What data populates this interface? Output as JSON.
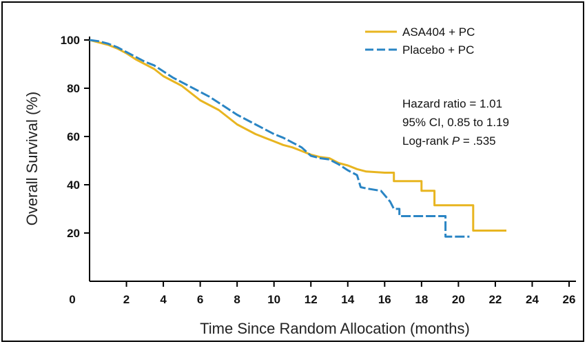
{
  "chart_data": {
    "type": "line",
    "title": "",
    "xlabel": "Time Since Random Allocation (months)",
    "ylabel": "Overall Survival (%)",
    "xlim": [
      0,
      26
    ],
    "ylim": [
      0,
      105
    ],
    "x_ticks": [
      0,
      2,
      4,
      6,
      8,
      10,
      12,
      14,
      16,
      18,
      20,
      22,
      24,
      26
    ],
    "y_ticks": [
      20,
      40,
      60,
      80,
      100
    ],
    "legend_position": "top-right",
    "series": [
      {
        "name": "ASA404 + PC",
        "color": "#e8b520",
        "dash": "solid",
        "points": [
          [
            0,
            100
          ],
          [
            0.5,
            99
          ],
          [
            1,
            98
          ],
          [
            1.5,
            96.5
          ],
          [
            2,
            94.5
          ],
          [
            2.5,
            92
          ],
          [
            3,
            90
          ],
          [
            3.5,
            88
          ],
          [
            4,
            85
          ],
          [
            4.5,
            83
          ],
          [
            5,
            81
          ],
          [
            5.5,
            78
          ],
          [
            6,
            75
          ],
          [
            6.5,
            73
          ],
          [
            7,
            71
          ],
          [
            7.5,
            68
          ],
          [
            8,
            65
          ],
          [
            8.5,
            63
          ],
          [
            9,
            61
          ],
          [
            9.5,
            59.5
          ],
          [
            10,
            58
          ],
          [
            10.5,
            56.5
          ],
          [
            11,
            55.5
          ],
          [
            11.5,
            54
          ],
          [
            12,
            52.5
          ],
          [
            12.5,
            51.5
          ],
          [
            13,
            51
          ],
          [
            13.5,
            49
          ],
          [
            14,
            48
          ],
          [
            14.5,
            46.5
          ],
          [
            15,
            45.5
          ],
          [
            16,
            45
          ],
          [
            16.5,
            45
          ],
          [
            16.5,
            41.5
          ],
          [
            17.5,
            41.5
          ],
          [
            18,
            41.5
          ],
          [
            18,
            37.5
          ],
          [
            18.7,
            37.5
          ],
          [
            18.7,
            31.5
          ],
          [
            20.8,
            31.5
          ],
          [
            20.8,
            21
          ],
          [
            22.6,
            21
          ]
        ]
      },
      {
        "name": "Placebo + PC",
        "color": "#2a85c4",
        "dash": "dashed",
        "points": [
          [
            0,
            100
          ],
          [
            0.5,
            99.5
          ],
          [
            1,
            98.5
          ],
          [
            1.5,
            97
          ],
          [
            2,
            95
          ],
          [
            2.5,
            93
          ],
          [
            3,
            91
          ],
          [
            3.5,
            89.5
          ],
          [
            4,
            87
          ],
          [
            4.5,
            84.5
          ],
          [
            5,
            82.5
          ],
          [
            5.5,
            80.5
          ],
          [
            6,
            78.5
          ],
          [
            6.5,
            76.5
          ],
          [
            7,
            74
          ],
          [
            7.5,
            71.5
          ],
          [
            8,
            69
          ],
          [
            8.5,
            67
          ],
          [
            9,
            65
          ],
          [
            9.5,
            63
          ],
          [
            10,
            61
          ],
          [
            10.5,
            59.5
          ],
          [
            11,
            57.5
          ],
          [
            11.5,
            55.5
          ],
          [
            12,
            52
          ],
          [
            12.5,
            51
          ],
          [
            13,
            50.5
          ],
          [
            13.5,
            48.5
          ],
          [
            14,
            46
          ],
          [
            14.5,
            44
          ],
          [
            14.7,
            39
          ],
          [
            15,
            38.5
          ],
          [
            15.8,
            37.5
          ],
          [
            16.3,
            33
          ],
          [
            16.3,
            33
          ],
          [
            16.5,
            30
          ],
          [
            16.8,
            30
          ],
          [
            16.8,
            27
          ],
          [
            18.5,
            27
          ],
          [
            19.3,
            27
          ],
          [
            19.3,
            18.5
          ],
          [
            20.6,
            18.5
          ]
        ]
      }
    ]
  },
  "annotation": {
    "line1": "Hazard ratio = 1.01",
    "line2": "95% CI, 0.85 to 1.19",
    "line3_prefix": "Log-rank ",
    "line3_italic": "P",
    "line3_suffix": " = .535"
  }
}
